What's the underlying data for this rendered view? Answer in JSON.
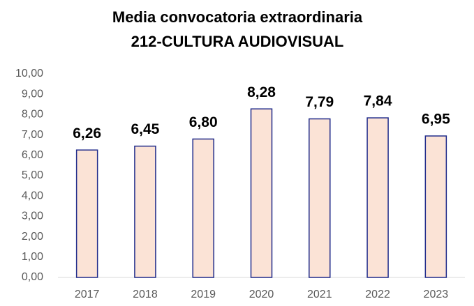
{
  "chart_data": {
    "type": "bar",
    "title": "Media convocatoria extraordinaria",
    "subtitle": "212-CULTURA AUDIOVISUAL",
    "categories": [
      "2017",
      "2018",
      "2019",
      "2020",
      "2021",
      "2022",
      "2023"
    ],
    "values": [
      6.26,
      6.45,
      6.8,
      8.28,
      7.79,
      7.84,
      6.95
    ],
    "value_labels": [
      "6,26",
      "6,45",
      "6,80",
      "8,28",
      "7,79",
      "7,84",
      "6,95"
    ],
    "color": "#fbe3d6",
    "edgecolor": "#1f2a8a",
    "ylim": [
      0,
      10
    ],
    "yticks": [
      {
        "value": 0,
        "label": "0,00"
      },
      {
        "value": 1,
        "label": "1,00"
      },
      {
        "value": 2,
        "label": "2,00"
      },
      {
        "value": 3,
        "label": "3,00"
      },
      {
        "value": 4,
        "label": "4,00"
      },
      {
        "value": 5,
        "label": "5,00"
      },
      {
        "value": 6,
        "label": "6,00"
      },
      {
        "value": 7,
        "label": "7,00"
      },
      {
        "value": 8,
        "label": "8,00"
      },
      {
        "value": 9,
        "label": "9,00"
      },
      {
        "value": 10,
        "label": "10,00"
      }
    ],
    "grid": false
  }
}
